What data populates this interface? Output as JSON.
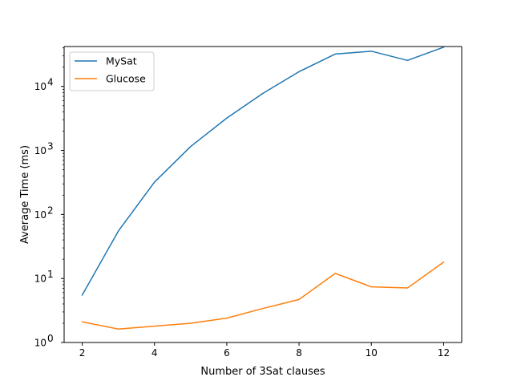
{
  "chart_data": {
    "type": "line",
    "title": "",
    "xlabel": "Number of 3Sat clauses",
    "ylabel": "Average Time (ms)",
    "x": [
      2,
      3,
      4,
      5,
      6,
      7,
      8,
      9,
      10,
      11,
      12
    ],
    "xlim": [
      1.5,
      12.5
    ],
    "xticks": [
      2,
      4,
      6,
      8,
      10,
      12
    ],
    "yscale": "log",
    "ylim": [
      1,
      42000
    ],
    "yticks": [
      {
        "value": 1,
        "base": "10",
        "exp": "0"
      },
      {
        "value": 10,
        "base": "10",
        "exp": "1"
      },
      {
        "value": 100,
        "base": "10",
        "exp": "2"
      },
      {
        "value": 1000,
        "base": "10",
        "exp": "3"
      },
      {
        "value": 10000,
        "base": "10",
        "exp": "4"
      }
    ],
    "grid": false,
    "legend_position": "top-left",
    "series": [
      {
        "name": "MySat",
        "color": "#1f77b4",
        "values": [
          5.5,
          55,
          320,
          1150,
          3200,
          7800,
          17000,
          32000,
          35500,
          25500,
          41000
        ]
      },
      {
        "name": "Glucose",
        "color": "#ff7f0e",
        "values": [
          2.1,
          1.62,
          1.8,
          2.0,
          2.4,
          3.4,
          4.7,
          12,
          7.4,
          7.1,
          18
        ]
      }
    ]
  }
}
